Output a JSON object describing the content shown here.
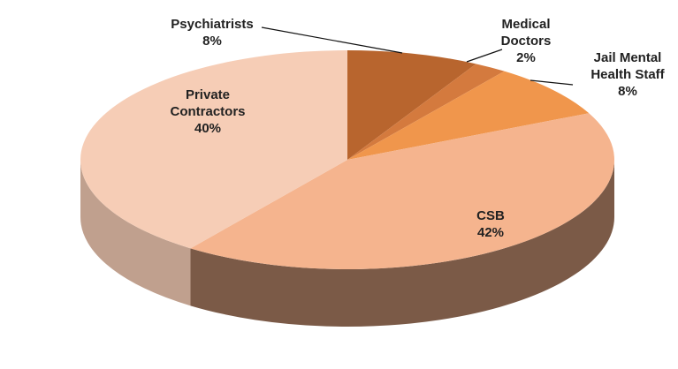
{
  "chart_data": {
    "type": "pie",
    "categories": [
      "Psychiatrists",
      "Medical Doctors",
      "Jail Mental Health Staff",
      "CSB",
      "Private Contractors"
    ],
    "values": [
      8,
      2,
      8,
      42,
      40
    ],
    "value_labels": [
      "8%",
      "2%",
      "8%",
      "42%",
      "40%"
    ],
    "colors": [
      "#b8652e",
      "#d47a3e",
      "#f0964c",
      "#f5b48e",
      "#f6cdb6"
    ]
  }
}
